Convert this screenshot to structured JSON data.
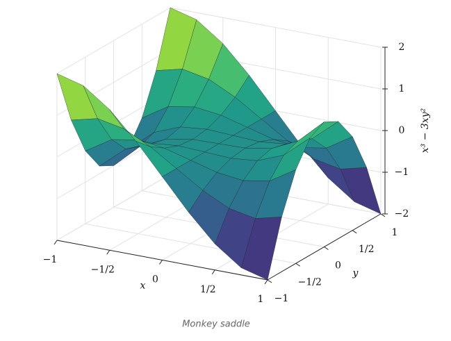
{
  "chart_data": {
    "type": "surface",
    "caption": "Monkey saddle",
    "xlabel": "x",
    "ylabel": "y",
    "zlabel": "x³ − 3xy²",
    "x": [
      -1,
      -0.75,
      -0.5,
      -0.25,
      0,
      0.25,
      0.5,
      0.75,
      1
    ],
    "y": [
      -1,
      -0.75,
      -0.5,
      -0.25,
      0,
      0.25,
      0.5,
      0.75,
      1
    ],
    "z": [
      [
        2,
        0.6875,
        -0.25,
        -0.8125,
        -1,
        -0.8125,
        -0.25,
        0.6875,
        2
      ],
      [
        1.828125,
        0.84375,
        0.140625,
        -0.28125,
        -0.421875,
        -0.28125,
        0.140625,
        0.84375,
        1.828125
      ],
      [
        1.375,
        0.71875,
        0.25,
        -0.03125,
        -0.125,
        -0.03125,
        0.25,
        0.71875,
        1.375
      ],
      [
        0.734375,
        0.40625,
        0.171875,
        0.03125,
        -0.015625,
        0.03125,
        0.171875,
        0.40625,
        0.734375
      ],
      [
        0,
        0,
        0,
        0,
        0,
        0,
        0,
        0,
        0
      ],
      [
        -0.734375,
        -0.40625,
        -0.171875,
        -0.03125,
        0.015625,
        -0.03125,
        -0.171875,
        -0.40625,
        -0.734375
      ],
      [
        -1.375,
        -0.71875,
        -0.25,
        0.03125,
        0.125,
        0.03125,
        -0.25,
        -0.71875,
        -1.375
      ],
      [
        -1.828125,
        -0.84375,
        -0.140625,
        0.28125,
        0.421875,
        0.28125,
        -0.140625,
        -0.84375,
        -1.828125
      ],
      [
        -2,
        -0.6875,
        0.25,
        0.8125,
        1,
        0.8125,
        0.25,
        -0.6875,
        -2
      ]
    ],
    "colormap": "viridis",
    "xlim": [
      -1,
      1
    ],
    "ylim": [
      -1,
      1
    ],
    "zlim": [
      -2,
      2
    ],
    "xticks": [
      {
        "value": -1,
        "label": "−1"
      },
      {
        "value": -0.5,
        "label": "−1/2"
      },
      0,
      {
        "value": 0.5,
        "label": "1/2"
      },
      1
    ],
    "yticks": [
      {
        "value": -1,
        "label": "−1"
      },
      {
        "value": -0.5,
        "label": "−1/2"
      },
      0,
      {
        "value": 0.5,
        "label": "1/2"
      },
      1
    ],
    "zticks": [
      {
        "value": -2,
        "label": "−2"
      },
      {
        "value": -1,
        "label": "−1"
      },
      0,
      1,
      2
    ],
    "grid": true
  }
}
